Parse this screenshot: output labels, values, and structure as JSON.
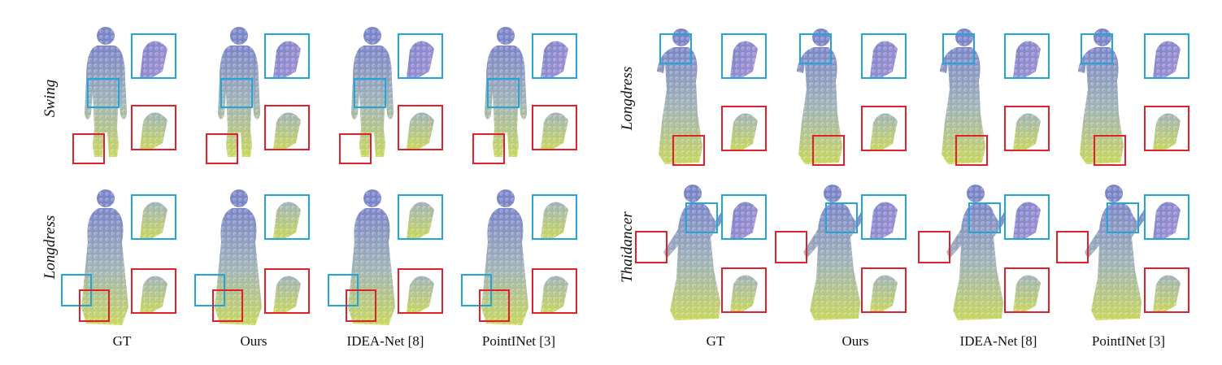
{
  "columns_left": [
    "GT",
    "Ours",
    "IDEA-Net [8]",
    "PointINet [3]"
  ],
  "columns_right": [
    "GT",
    "Ours",
    "IDEA-Net [8]",
    "PointINet [3]"
  ],
  "rows_left": [
    "Swing",
    "Longdress"
  ],
  "rows_right": [
    "Longdress",
    "Thaidancer"
  ],
  "colors": {
    "box_blue": "#22a6d8",
    "box_red": "#e0202a",
    "cloud_top": "#7a84c8",
    "cloud_mid": "#9fb2b8",
    "cloud_bottom": "#c9d85a",
    "thaidancer_hand": "#a48fd6"
  },
  "icons": [
    "point-cloud-figure",
    "zoom-inset"
  ]
}
